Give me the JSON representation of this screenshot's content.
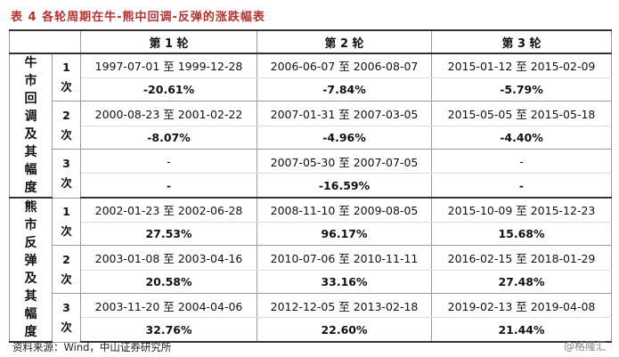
{
  "title": "表 4  各轮周期在牛-熊中回调-反弹的涨跌幅表",
  "table": {
    "columns": [
      "第 1 轮",
      "第 2 轮",
      "第 3 轮"
    ],
    "groups": [
      {
        "label": "牛市回调及其幅度",
        "rows": [
          {
            "label": "1次",
            "cells": [
              {
                "period": "1997-07-01 至 1999-12-28",
                "change": "-20.61%"
              },
              {
                "period": "2006-06-07 至 2006-08-07",
                "change": "-7.84%"
              },
              {
                "period": "2015-01-12 至 2015-02-09",
                "change": "-5.79%"
              }
            ]
          },
          {
            "label": "2次",
            "cells": [
              {
                "period": "2000-08-23 至 2001-02-22",
                "change": "-8.07%"
              },
              {
                "period": "2007-01-31 至 2007-03-05",
                "change": "-4.96%"
              },
              {
                "period": "2015-05-05 至 2015-05-18",
                "change": "-4.40%"
              }
            ]
          },
          {
            "label": "3次",
            "cells": [
              {
                "period": "-",
                "change": "-"
              },
              {
                "period": "2007-05-30 至 2007-07-05",
                "change": "-16.59%"
              },
              {
                "period": "-",
                "change": "-"
              }
            ]
          }
        ]
      },
      {
        "label": "熊市反弹及其幅度",
        "rows": [
          {
            "label": "1次",
            "cells": [
              {
                "period": "2002-01-23 至 2002-06-28",
                "change": "27.53%"
              },
              {
                "period": "2008-11-10 至 2009-08-05",
                "change": "96.17%"
              },
              {
                "period": "2015-10-09 至 2015-12-23",
                "change": "15.68%"
              }
            ]
          },
          {
            "label": "2次",
            "cells": [
              {
                "period": "2003-01-08 至 2003-04-16",
                "change": "20.58%"
              },
              {
                "period": "2010-07-06 至 2010-11-11",
                "change": "33.16%"
              },
              {
                "period": "2016-02-15 至 2018-01-29",
                "change": "27.48%"
              }
            ]
          },
          {
            "label": "3次",
            "cells": [
              {
                "period": "2003-11-20 至 2004-04-06",
                "change": "32.76%"
              },
              {
                "period": "2012-12-05 至 2013-02-18",
                "change": "22.60%"
              },
              {
                "period": "2019-02-13 至 2019-04-08",
                "change": "21.44%"
              }
            ]
          }
        ]
      }
    ]
  },
  "source": "资料来源：Wind，中山证券研究所",
  "watermark": "@格隆汇"
}
